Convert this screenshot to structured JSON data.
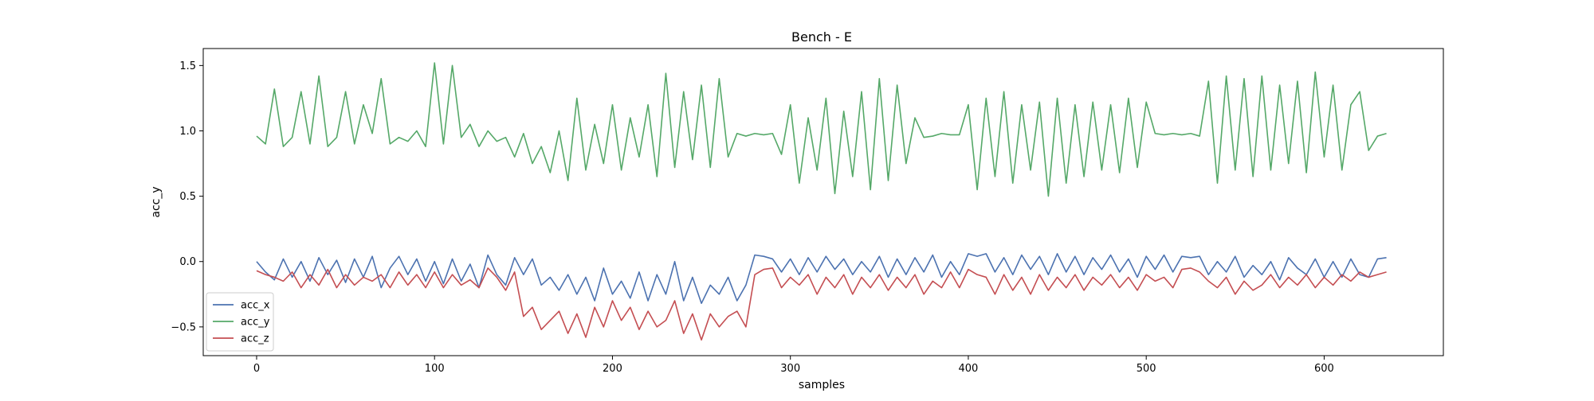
{
  "chart_data": {
    "type": "line",
    "title": "Bench - E",
    "xlabel": "samples",
    "ylabel": "acc_y",
    "xlim": [
      -30,
      667
    ],
    "ylim": [
      -0.72,
      1.63
    ],
    "grid": false,
    "legend_position": "lower-left",
    "x_ticks": [
      0,
      100,
      200,
      300,
      400,
      500,
      600
    ],
    "x_tick_labels": [
      "0",
      "100",
      "200",
      "300",
      "400",
      "500",
      "600"
    ],
    "y_ticks": [
      -0.5,
      0.0,
      0.5,
      1.0,
      1.5
    ],
    "y_tick_labels": [
      "−0.5",
      "0.0",
      "0.5",
      "1.0",
      "1.5"
    ],
    "x": [
      0,
      5,
      10,
      15,
      20,
      25,
      30,
      35,
      40,
      45,
      50,
      55,
      60,
      65,
      70,
      75,
      80,
      85,
      90,
      95,
      100,
      105,
      110,
      115,
      120,
      125,
      130,
      135,
      140,
      145,
      150,
      155,
      160,
      165,
      170,
      175,
      180,
      185,
      190,
      195,
      200,
      205,
      210,
      215,
      220,
      225,
      230,
      235,
      240,
      245,
      250,
      255,
      260,
      265,
      270,
      275,
      280,
      285,
      290,
      295,
      300,
      305,
      310,
      315,
      320,
      325,
      330,
      335,
      340,
      345,
      350,
      355,
      360,
      365,
      370,
      375,
      380,
      385,
      390,
      395,
      400,
      405,
      410,
      415,
      420,
      425,
      430,
      435,
      440,
      445,
      450,
      455,
      460,
      465,
      470,
      475,
      480,
      485,
      490,
      495,
      500,
      505,
      510,
      515,
      520,
      525,
      530,
      535,
      540,
      545,
      550,
      555,
      560,
      565,
      570,
      575,
      580,
      585,
      590,
      595,
      600,
      605,
      610,
      615,
      620,
      625,
      630,
      635
    ],
    "series": [
      {
        "name": "acc_x",
        "color": "#4c72b0",
        "values": [
          0.0,
          -0.08,
          -0.14,
          0.02,
          -0.12,
          0.0,
          -0.15,
          0.03,
          -0.1,
          0.01,
          -0.16,
          0.02,
          -0.12,
          0.04,
          -0.2,
          -0.05,
          0.04,
          -0.1,
          0.02,
          -0.15,
          0.0,
          -0.17,
          0.02,
          -0.15,
          -0.02,
          -0.2,
          0.05,
          -0.1,
          -0.18,
          0.03,
          -0.1,
          0.02,
          -0.18,
          -0.12,
          -0.22,
          -0.1,
          -0.25,
          -0.12,
          -0.3,
          -0.05,
          -0.25,
          -0.15,
          -0.28,
          -0.08,
          -0.3,
          -0.1,
          -0.25,
          0.0,
          -0.3,
          -0.12,
          -0.32,
          -0.18,
          -0.25,
          -0.12,
          -0.3,
          -0.18,
          0.05,
          0.04,
          0.02,
          -0.08,
          0.02,
          -0.1,
          0.03,
          -0.08,
          0.04,
          -0.06,
          0.02,
          -0.1,
          0.0,
          -0.08,
          0.04,
          -0.12,
          0.02,
          -0.1,
          0.03,
          -0.08,
          0.05,
          -0.12,
          0.0,
          -0.1,
          0.06,
          0.04,
          0.06,
          -0.08,
          0.03,
          -0.1,
          0.05,
          -0.06,
          0.04,
          -0.1,
          0.06,
          -0.08,
          0.04,
          -0.1,
          0.03,
          -0.06,
          0.05,
          -0.08,
          0.02,
          -0.12,
          0.04,
          -0.06,
          0.05,
          -0.08,
          0.04,
          0.03,
          0.04,
          -0.1,
          0.0,
          -0.08,
          0.04,
          -0.12,
          -0.03,
          -0.1,
          0.0,
          -0.14,
          0.03,
          -0.05,
          -0.1,
          0.02,
          -0.12,
          0.0,
          -0.12,
          0.02,
          -0.1,
          -0.12,
          0.02,
          0.03
        ]
      },
      {
        "name": "acc_y",
        "color": "#55a868",
        "values": [
          0.96,
          0.9,
          1.32,
          0.88,
          0.95,
          1.3,
          0.9,
          1.42,
          0.88,
          0.95,
          1.3,
          0.9,
          1.2,
          0.98,
          1.4,
          0.9,
          0.95,
          0.92,
          1.0,
          0.88,
          1.52,
          0.9,
          1.5,
          0.95,
          1.05,
          0.88,
          1.0,
          0.92,
          0.95,
          0.8,
          0.98,
          0.75,
          0.88,
          0.68,
          1.0,
          0.62,
          1.25,
          0.7,
          1.05,
          0.75,
          1.2,
          0.7,
          1.1,
          0.8,
          1.2,
          0.65,
          1.44,
          0.72,
          1.3,
          0.78,
          1.35,
          0.72,
          1.4,
          0.8,
          0.98,
          0.96,
          0.98,
          0.97,
          0.98,
          0.82,
          1.2,
          0.6,
          1.1,
          0.7,
          1.25,
          0.52,
          1.15,
          0.65,
          1.3,
          0.55,
          1.4,
          0.62,
          1.35,
          0.75,
          1.1,
          0.95,
          0.96,
          0.98,
          0.97,
          0.97,
          1.2,
          0.55,
          1.25,
          0.65,
          1.3,
          0.6,
          1.2,
          0.7,
          1.22,
          0.5,
          1.25,
          0.6,
          1.2,
          0.65,
          1.22,
          0.7,
          1.2,
          0.68,
          1.25,
          0.72,
          1.22,
          0.98,
          0.97,
          0.98,
          0.97,
          0.98,
          0.96,
          1.38,
          0.6,
          1.42,
          0.7,
          1.4,
          0.65,
          1.42,
          0.7,
          1.35,
          0.75,
          1.38,
          0.68,
          1.45,
          0.8,
          1.35,
          0.7,
          1.2,
          1.3,
          0.85,
          0.96,
          0.98
        ]
      },
      {
        "name": "acc_z",
        "color": "#c44e52",
        "values": [
          -0.07,
          -0.1,
          -0.12,
          -0.15,
          -0.08,
          -0.2,
          -0.1,
          -0.18,
          -0.06,
          -0.2,
          -0.1,
          -0.18,
          -0.12,
          -0.15,
          -0.1,
          -0.2,
          -0.08,
          -0.18,
          -0.1,
          -0.2,
          -0.08,
          -0.2,
          -0.1,
          -0.18,
          -0.14,
          -0.2,
          -0.05,
          -0.12,
          -0.22,
          -0.08,
          -0.42,
          -0.35,
          -0.52,
          -0.45,
          -0.38,
          -0.55,
          -0.4,
          -0.58,
          -0.35,
          -0.5,
          -0.3,
          -0.45,
          -0.35,
          -0.52,
          -0.38,
          -0.5,
          -0.45,
          -0.3,
          -0.55,
          -0.4,
          -0.6,
          -0.4,
          -0.5,
          -0.42,
          -0.38,
          -0.5,
          -0.1,
          -0.06,
          -0.05,
          -0.2,
          -0.12,
          -0.18,
          -0.1,
          -0.25,
          -0.12,
          -0.2,
          -0.1,
          -0.25,
          -0.12,
          -0.2,
          -0.1,
          -0.22,
          -0.12,
          -0.2,
          -0.1,
          -0.25,
          -0.15,
          -0.2,
          -0.08,
          -0.2,
          -0.06,
          -0.1,
          -0.12,
          -0.25,
          -0.1,
          -0.22,
          -0.12,
          -0.25,
          -0.1,
          -0.22,
          -0.12,
          -0.2,
          -0.1,
          -0.22,
          -0.12,
          -0.18,
          -0.1,
          -0.2,
          -0.12,
          -0.22,
          -0.1,
          -0.15,
          -0.12,
          -0.2,
          -0.06,
          -0.05,
          -0.08,
          -0.15,
          -0.2,
          -0.12,
          -0.25,
          -0.15,
          -0.22,
          -0.18,
          -0.1,
          -0.2,
          -0.12,
          -0.18,
          -0.1,
          -0.2,
          -0.12,
          -0.18,
          -0.1,
          -0.15,
          -0.08,
          -0.12,
          -0.1,
          -0.08
        ]
      }
    ]
  }
}
